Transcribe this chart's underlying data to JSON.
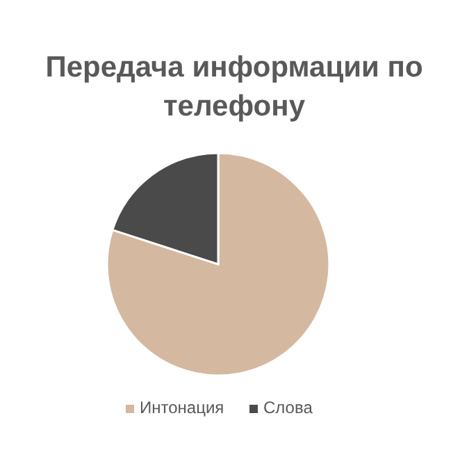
{
  "chart_data": {
    "type": "pie",
    "title": "Передача информации по телефону",
    "categories": [
      "Интонация",
      "Слова"
    ],
    "values": [
      80,
      20
    ],
    "colors": [
      "#d5b8a0",
      "#4a4a4a"
    ],
    "legend": "bottom"
  }
}
